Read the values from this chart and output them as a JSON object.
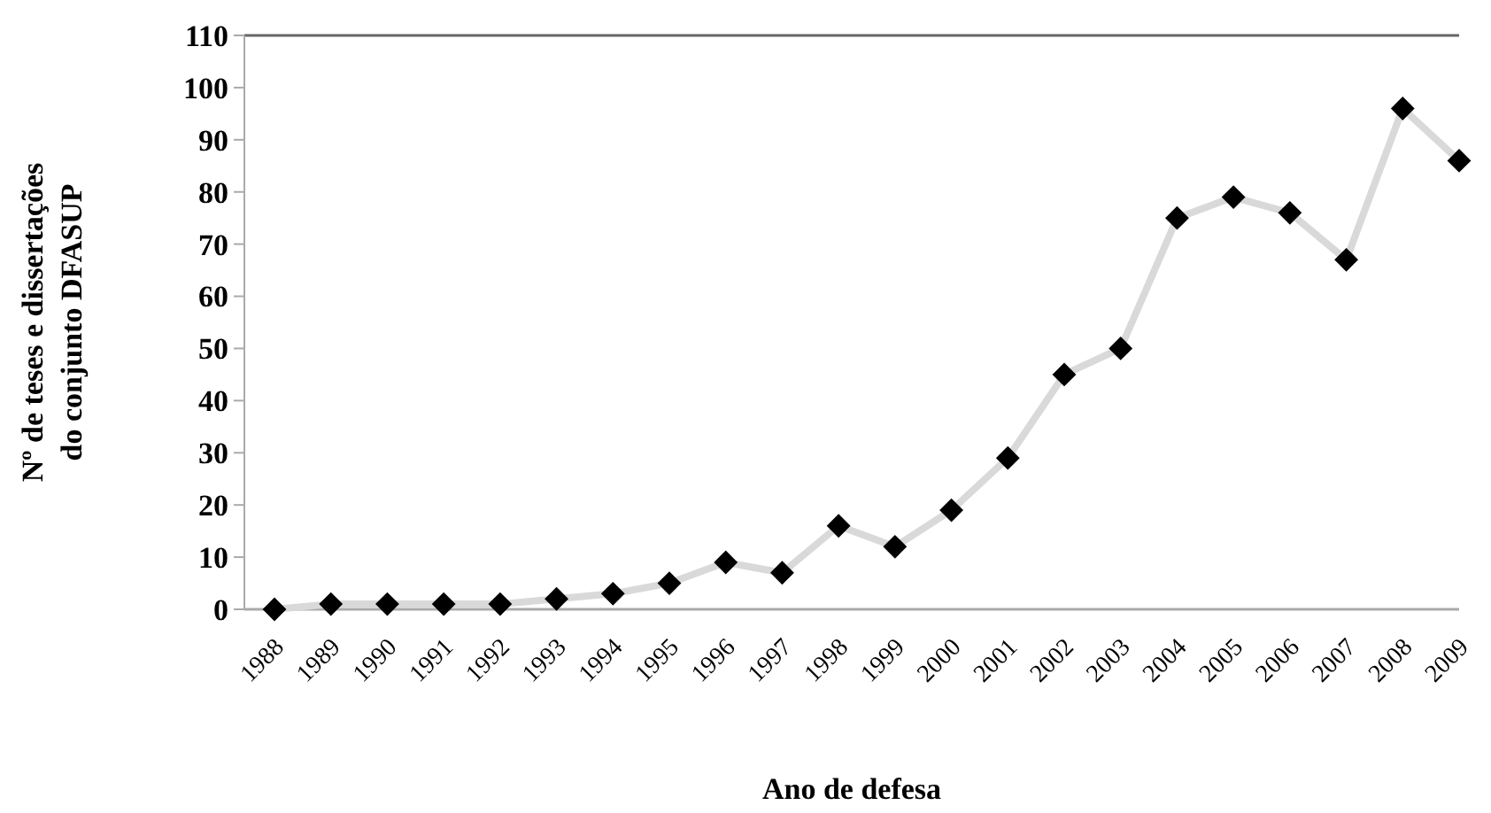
{
  "chart_data": {
    "type": "line",
    "xlabel": "Ano de defesa",
    "ylabel": "Nº de teses e dissertações\ndo conjunto DFASUP",
    "categories": [
      "1988",
      "1989",
      "1990",
      "1991",
      "1992",
      "1993",
      "1994",
      "1995",
      "1996",
      "1997",
      "1998",
      "1999",
      "2000",
      "2001",
      "2002",
      "2003",
      "2004",
      "2005",
      "2006",
      "2007",
      "2008",
      "2009"
    ],
    "series": [
      {
        "color": "#d9d9d9",
        "values": [
          0,
          1,
          1,
          1,
          1,
          2,
          3,
          5,
          9,
          7,
          16,
          12,
          19,
          29,
          45,
          50,
          75,
          79,
          76,
          67,
          96,
          86
        ]
      }
    ],
    "ylim": [
      0,
      110
    ],
    "yticks": [
      0,
      10,
      20,
      30,
      40,
      50,
      60,
      70,
      80,
      90,
      100,
      110
    ],
    "marker": "diamond",
    "line_style": "solid",
    "grid": false
  }
}
